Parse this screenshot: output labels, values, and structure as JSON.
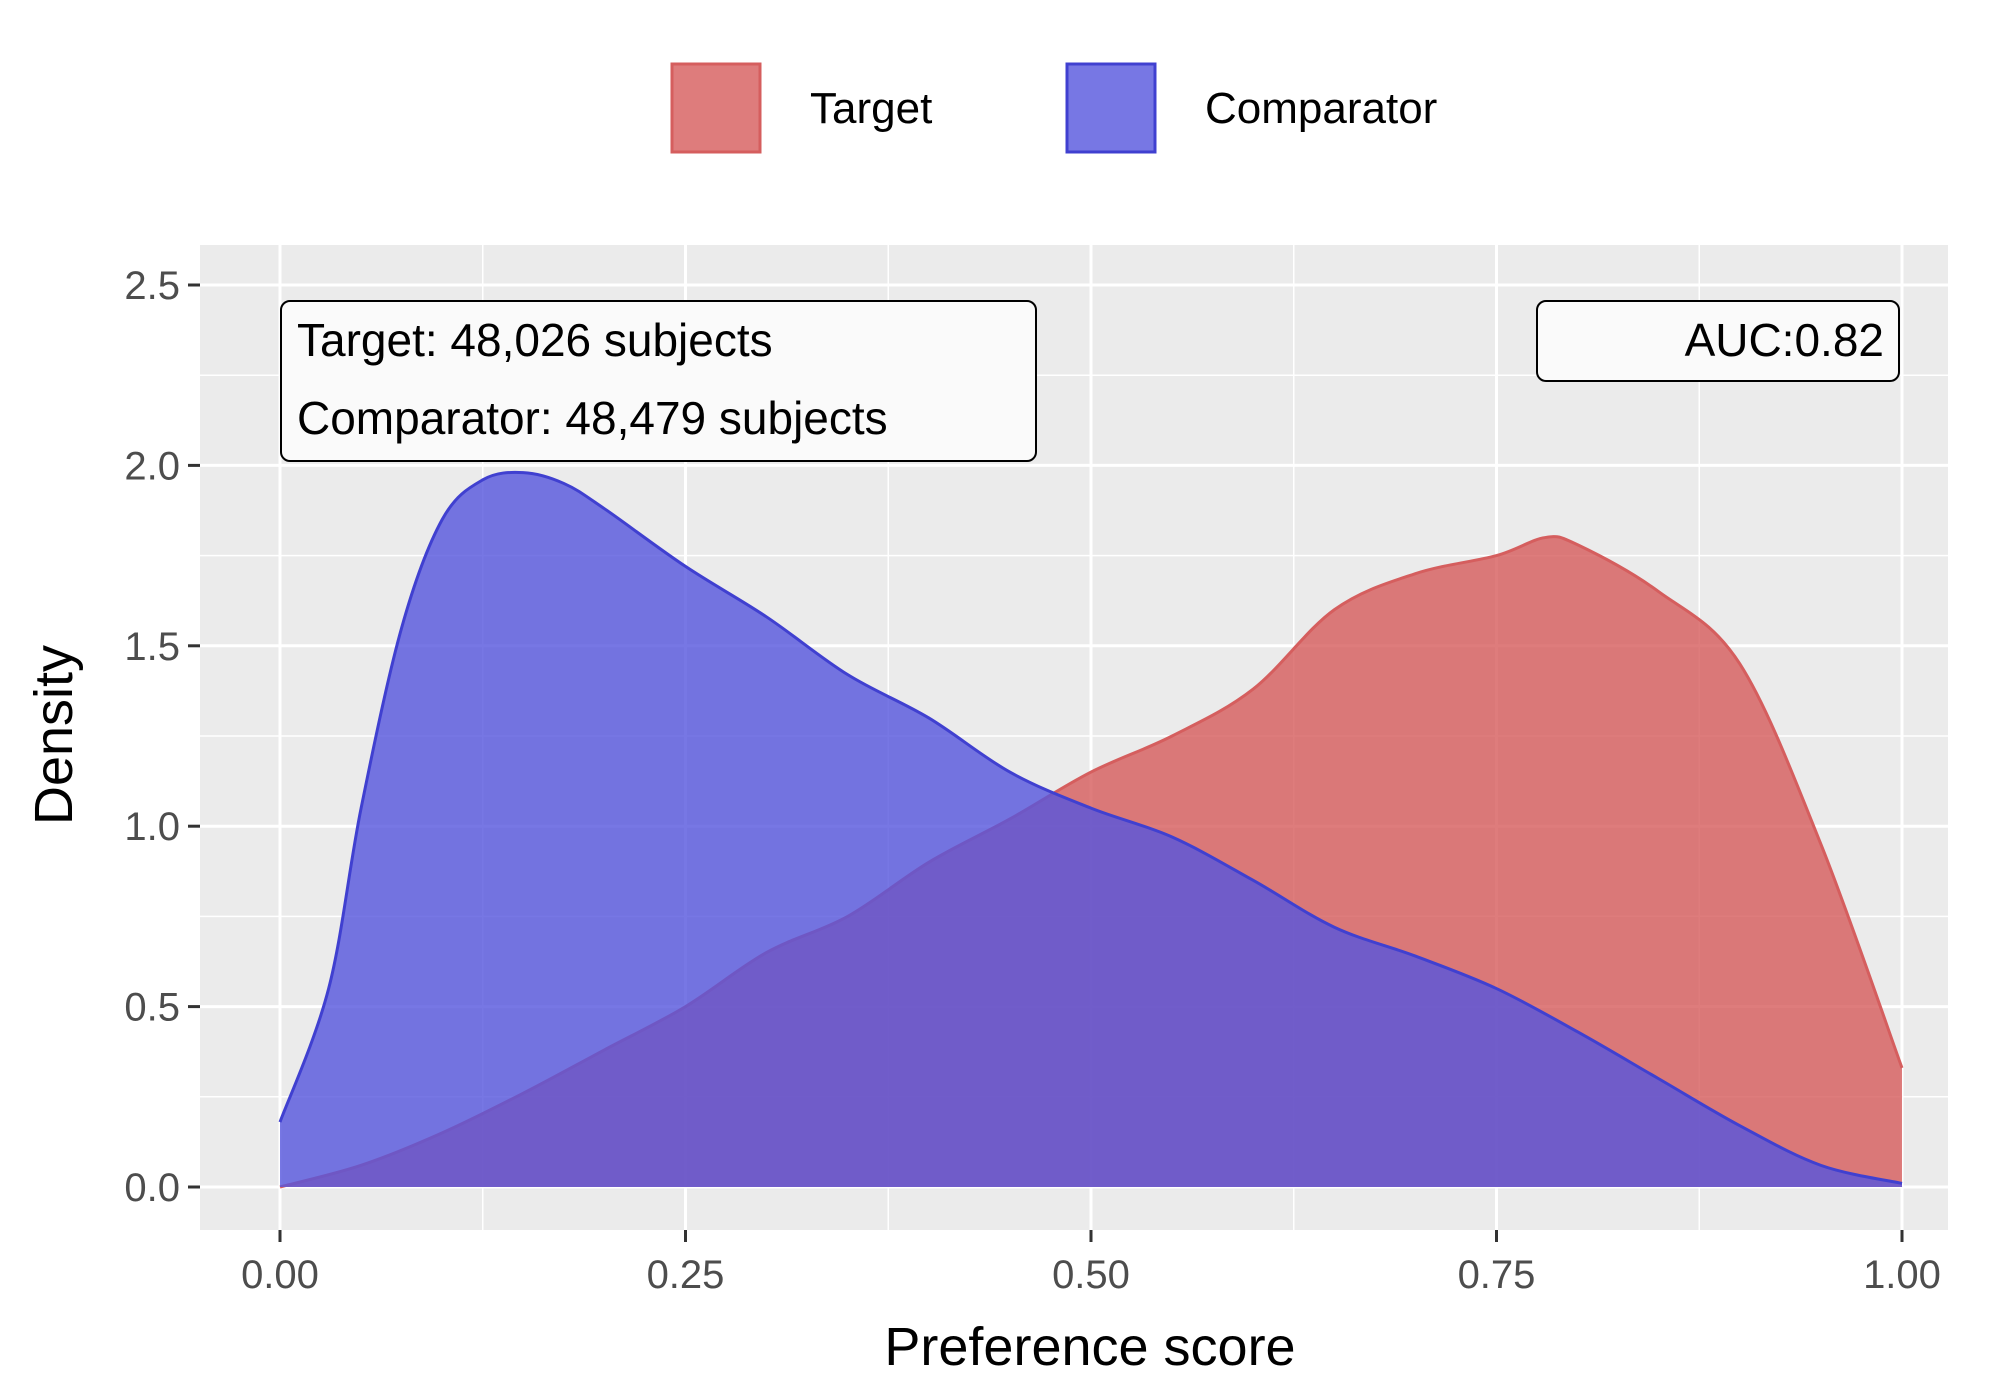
{
  "chart_data": {
    "type": "area",
    "title": "",
    "xlabel": "Preference score",
    "ylabel": "Density",
    "xlim": [
      0,
      1
    ],
    "ylim": [
      0,
      2.5
    ],
    "x_ticks": [
      "0.00",
      "0.25",
      "0.50",
      "0.75",
      "1.00"
    ],
    "y_ticks": [
      "0.0",
      "0.5",
      "1.0",
      "1.5",
      "2.0",
      "2.5"
    ],
    "grid": true,
    "legend_position": "top",
    "series": [
      {
        "name": "Target",
        "color": "#d55e5e",
        "fill": "#d65b5b",
        "x": [
          0.0,
          0.05,
          0.1,
          0.15,
          0.2,
          0.25,
          0.3,
          0.35,
          0.4,
          0.45,
          0.5,
          0.55,
          0.6,
          0.65,
          0.7,
          0.75,
          0.78,
          0.8,
          0.85,
          0.9,
          0.95,
          1.0
        ],
        "y": [
          0.0,
          0.06,
          0.15,
          0.26,
          0.38,
          0.5,
          0.65,
          0.75,
          0.9,
          1.02,
          1.15,
          1.25,
          1.38,
          1.6,
          1.7,
          1.75,
          1.8,
          1.78,
          1.65,
          1.45,
          0.95,
          0.33
        ]
      },
      {
        "name": "Comparator",
        "color": "#4040d0",
        "fill": "#5555dd",
        "x": [
          0.0,
          0.03,
          0.05,
          0.075,
          0.1,
          0.125,
          0.15,
          0.175,
          0.2,
          0.25,
          0.3,
          0.35,
          0.4,
          0.45,
          0.5,
          0.55,
          0.6,
          0.65,
          0.7,
          0.75,
          0.8,
          0.85,
          0.9,
          0.95,
          1.0
        ],
        "y": [
          0.18,
          0.55,
          1.05,
          1.55,
          1.85,
          1.96,
          1.98,
          1.95,
          1.88,
          1.72,
          1.58,
          1.42,
          1.3,
          1.15,
          1.05,
          0.97,
          0.85,
          0.72,
          0.64,
          0.55,
          0.43,
          0.3,
          0.17,
          0.06,
          0.01
        ]
      }
    ],
    "annotations": {
      "counts": [
        "Target: 48,026 subjects",
        "Comparator: 48,479 subjects"
      ],
      "auc": "AUC:0.82"
    }
  }
}
